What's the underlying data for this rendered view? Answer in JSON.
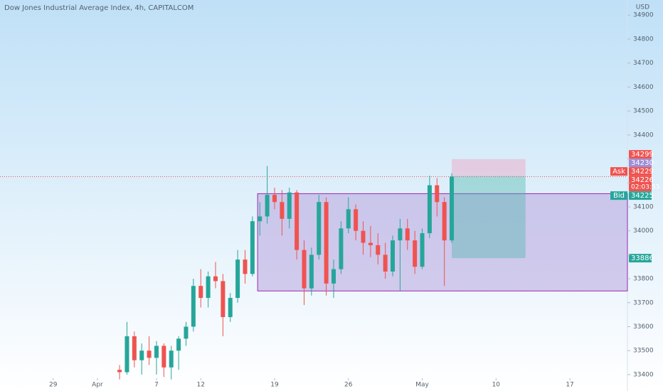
{
  "chart_data": {
    "type": "candlestick",
    "title": "Dow Jones Industrial Average Index, 4h, CAPITALCOM",
    "currency": "USD",
    "xlim": [
      -3.6,
      38.9
    ],
    "ylim": [
      33385,
      34963
    ],
    "yticks": [
      33400,
      33500,
      33600,
      33700,
      33800,
      33900,
      34000,
      34100,
      34200,
      34300,
      34400,
      34500,
      34600,
      34700,
      34800,
      34900
    ],
    "xticks": [
      {
        "value": 0,
        "label": "29"
      },
      {
        "value": 3,
        "label": "Apr"
      },
      {
        "value": 7,
        "label": "7"
      },
      {
        "value": 10,
        "label": "12"
      },
      {
        "value": 15,
        "label": "19"
      },
      {
        "value": 20,
        "label": "26"
      },
      {
        "value": 25,
        "label": "May"
      },
      {
        "value": 30,
        "label": "10"
      },
      {
        "value": 35,
        "label": "17"
      }
    ],
    "grid": false,
    "up_color": "#26a69a",
    "down_color": "#ef5350",
    "x": [
      4.5,
      5,
      5.5,
      6,
      6.5,
      7,
      7.5,
      8,
      8.5,
      9,
      9.5,
      10,
      10.5,
      11,
      11.5,
      12,
      12.5,
      13,
      13.5,
      14,
      14.5,
      15,
      15.5,
      16,
      16.5,
      17,
      17.5,
      18,
      18.5,
      19,
      19.5,
      20,
      20.5,
      21,
      21.5,
      22,
      22.5,
      23,
      23.5,
      24,
      24.5,
      25,
      25.5,
      26,
      26.5,
      27
    ],
    "open": [
      33420,
      33410,
      33560,
      33460,
      33500,
      33470,
      33520,
      33430,
      33500,
      33550,
      33600,
      33770,
      33720,
      33810,
      33790,
      33640,
      33720,
      33880,
      33820,
      34040,
      34060,
      34150,
      34120,
      34050,
      34160,
      33920,
      33760,
      33900,
      34120,
      33780,
      33840,
      34010,
      34090,
      34000,
      33950,
      33940,
      33900,
      33830,
      33960,
      34010,
      33960,
      33850,
      33990,
      34190,
      34120,
      33960
    ],
    "high": [
      33440,
      33620,
      33580,
      33530,
      33560,
      33540,
      33530,
      33520,
      33560,
      33620,
      33800,
      33840,
      33830,
      33870,
      33820,
      33740,
      33920,
      33920,
      34060,
      34120,
      34270,
      34180,
      34170,
      34180,
      34170,
      33960,
      33930,
      34150,
      34140,
      33880,
      34040,
      34140,
      34110,
      34040,
      34020,
      33990,
      33950,
      33980,
      34050,
      34050,
      34000,
      34010,
      34230,
      34220,
      34140,
      34240
    ],
    "low": [
      33380,
      33400,
      33430,
      33400,
      33440,
      33400,
      33390,
      33380,
      33420,
      33520,
      33580,
      33680,
      33680,
      33760,
      33560,
      33620,
      33700,
      33780,
      33810,
      33980,
      34030,
      34090,
      33980,
      34010,
      33880,
      33690,
      33730,
      33880,
      33730,
      33720,
      33820,
      33990,
      33960,
      33900,
      33890,
      33860,
      33800,
      33810,
      33750,
      33920,
      33820,
      33840,
      33970,
      34060,
      33770,
      33950
    ],
    "close": [
      33410,
      33560,
      33460,
      33500,
      33470,
      33520,
      33430,
      33500,
      33550,
      33600,
      33770,
      33720,
      33810,
      33790,
      33640,
      33720,
      33880,
      33820,
      34040,
      34060,
      34150,
      34120,
      34050,
      34160,
      33920,
      33760,
      33900,
      34120,
      33780,
      33840,
      34010,
      34090,
      34000,
      33950,
      33940,
      33900,
      33830,
      33960,
      34010,
      33960,
      33850,
      33990,
      34190,
      34120,
      33960,
      34226
    ],
    "last_price": 34226,
    "range_box": {
      "x_start": 13.85,
      "top": 34155,
      "bottom": 33749,
      "color": "#b39ddb"
    },
    "position": {
      "x_start": 27,
      "x_end": 32,
      "stop": 34299,
      "entry": 34229,
      "target": 33886
    },
    "price_markers": [
      {
        "value": 34299,
        "color": "#ef5350"
      },
      {
        "value": 34230,
        "color": "#9c8fd6"
      },
      {
        "name": "Ask",
        "value": 34229,
        "color": "#ef5350"
      },
      {
        "value": 34226,
        "countdown": "02:03:53",
        "color": "#ef5350"
      },
      {
        "name": "Bid",
        "value": 34225,
        "color": "#26a69a"
      },
      {
        "value": 33886,
        "color": "#26a69a"
      }
    ]
  }
}
